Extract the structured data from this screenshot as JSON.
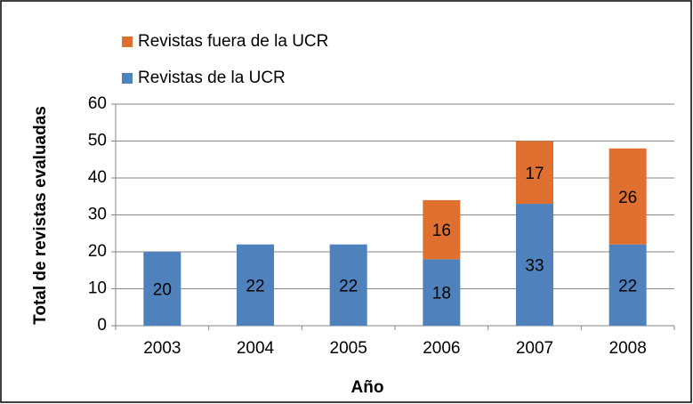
{
  "chart_data": {
    "type": "stacked_bar",
    "categories": [
      "2003",
      "2004",
      "2005",
      "2006",
      "2007",
      "2008"
    ],
    "series": [
      {
        "name": "Revistas de la UCR",
        "color": "#4f81bd",
        "values": [
          20,
          22,
          22,
          18,
          33,
          22
        ]
      },
      {
        "name": "Revistas fuera de la UCR",
        "color": "#e0702f",
        "values": [
          null,
          null,
          null,
          16,
          17,
          26
        ]
      }
    ],
    "ylim": [
      0,
      60
    ],
    "yticks": [
      0,
      10,
      20,
      30,
      40,
      50,
      60
    ],
    "xlabel": "Año",
    "ylabel": "Total de revistas evaluadas",
    "grid": true,
    "legend": "top-left"
  }
}
